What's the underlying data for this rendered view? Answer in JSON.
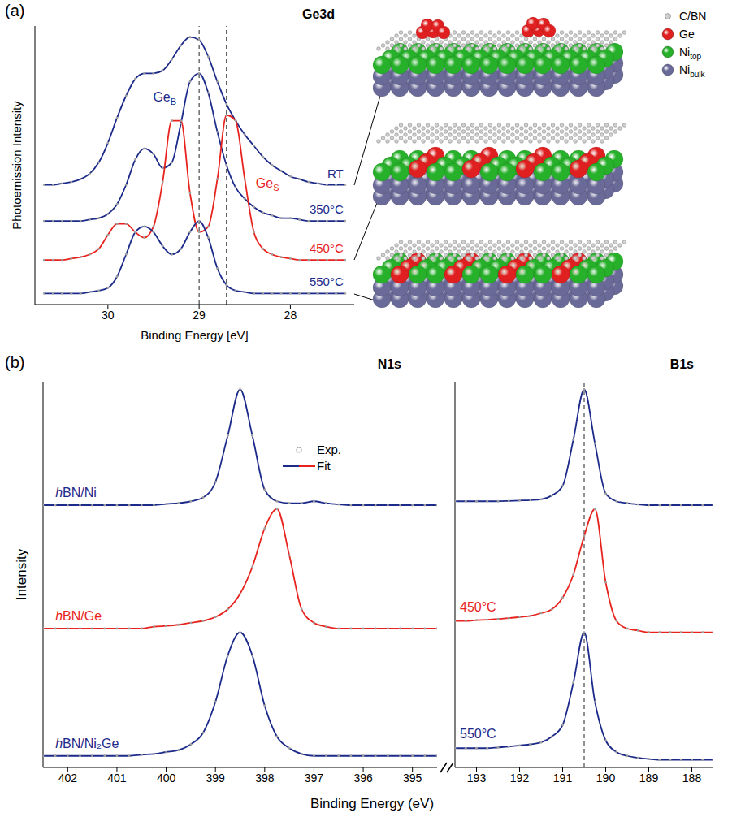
{
  "chart_data": [
    {
      "type": "line",
      "panel": "(a)",
      "title": "Ge3d",
      "x_label": "Binding Energy [eV]",
      "y_label": "Photoemission Intensity",
      "x": [
        27.4,
        27.5,
        27.6,
        27.7,
        27.8,
        27.9,
        28.0,
        28.1,
        28.2,
        28.3,
        28.4,
        28.5,
        28.6,
        28.7,
        28.8,
        28.9,
        29.0,
        29.1,
        29.2,
        29.3,
        29.4,
        29.5,
        29.6,
        29.7,
        29.8,
        29.9,
        30.0,
        30.1,
        30.2,
        30.3,
        30.4,
        30.5,
        30.6,
        30.7
      ],
      "series": [
        {
          "name": "RT",
          "color": "#1c2a8a",
          "values": [
            43,
            43,
            43,
            43.5,
            44,
            45,
            46,
            48,
            50,
            53,
            57,
            61,
            66,
            72,
            80,
            89,
            95,
            96,
            93,
            88,
            84,
            83,
            83,
            81,
            75,
            67,
            58,
            51,
            47,
            45,
            44,
            43.5,
            43,
            43
          ]
        },
        {
          "name": "350°C",
          "color": "#1c2a8a",
          "values": [
            30,
            30,
            30,
            30,
            30,
            30.5,
            31,
            31,
            32,
            33,
            35,
            38,
            42,
            50,
            62,
            76,
            83,
            80,
            65,
            51,
            49,
            54,
            56,
            52,
            43,
            36,
            32.5,
            31,
            30.5,
            30,
            30,
            30,
            30,
            30
          ]
        },
        {
          "name": "450°C",
          "color": "#e8231e",
          "values": [
            16,
            16,
            16,
            16,
            16,
            16,
            16.5,
            17,
            18,
            20,
            26,
            45,
            66,
            68,
            45,
            28,
            26,
            40,
            66,
            66,
            44,
            28,
            24,
            26,
            29,
            29,
            25,
            20,
            18,
            17,
            16.5,
            16,
            16,
            16
          ]
        },
        {
          "name": "550°C",
          "color": "#1c2a8a",
          "values": [
            4,
            4,
            4,
            4,
            4,
            4,
            4,
            4,
            4,
            4,
            4,
            4.5,
            5,
            7,
            13,
            24,
            30,
            26,
            20,
            18,
            21,
            26,
            28,
            26,
            18,
            10,
            6,
            5,
            4.5,
            4,
            4,
            4,
            4,
            4
          ]
        }
      ],
      "xlim": [
        27.3,
        30.8
      ],
      "xticks": [
        28,
        29,
        30
      ],
      "ylim": [
        0,
        100
      ],
      "yticks": [],
      "tick_labels": "x",
      "marker": "circle",
      "annotations": [
        {
          "x": 29.0,
          "text": "Ge",
          "sub": "B",
          "color": "#1c2a8a"
        },
        {
          "x": 28.7,
          "text": "Ge",
          "sub": "S",
          "color": "#e8231e"
        }
      ]
    },
    {
      "type": "line",
      "panel": "(b)",
      "title": "N1s",
      "x_label": "Binding Energy (eV)",
      "y_label": "Intensity",
      "legend": "top",
      "legend_labels": [
        "Exp.",
        "Fit"
      ],
      "x": [
        394.5,
        394.75,
        395,
        395.25,
        395.5,
        395.75,
        396,
        396.25,
        396.5,
        396.75,
        397,
        397.25,
        397.5,
        397.75,
        398,
        398.25,
        398.5,
        398.75,
        399,
        399.25,
        399.5,
        399.75,
        400,
        400.25,
        400.5,
        400.75,
        401,
        401.25,
        401.5,
        401.75,
        402,
        402.25,
        402.5
      ],
      "series": [
        {
          "name": "hBN/Ni",
          "color": "#1c2a8a",
          "values": [
            68,
            68,
            68,
            68,
            68,
            68,
            68,
            68,
            68.2,
            68.5,
            69,
            68.5,
            68.5,
            69,
            72,
            86,
            98,
            86,
            74,
            70,
            69,
            68.5,
            68.3,
            68,
            68,
            68,
            68,
            68,
            68,
            68,
            68,
            68,
            68
          ]
        },
        {
          "name": "hBN/Ge",
          "color": "#e8231e",
          "values": [
            36,
            36,
            36,
            36,
            36,
            36,
            36,
            36,
            36,
            36.5,
            37.5,
            41,
            55,
            67,
            62,
            52,
            45,
            41,
            39,
            38,
            37.5,
            37,
            36.7,
            36.5,
            36,
            36,
            36,
            36,
            36,
            36,
            36,
            36,
            36
          ]
        },
        {
          "name": "hBN/Ni₂Ge",
          "color": "#1c2a8a",
          "values": [
            3,
            3,
            3,
            3,
            3,
            3,
            3,
            3,
            3,
            3,
            3,
            3.5,
            5,
            8,
            16,
            29,
            35,
            29,
            17,
            9,
            6,
            4.5,
            4,
            3.5,
            3.3,
            3,
            3,
            3,
            3,
            3,
            3,
            3,
            3
          ]
        }
      ],
      "xlim": [
        394.5,
        402.5
      ],
      "xticks": [
        395,
        396,
        397,
        398,
        399,
        400,
        401,
        402
      ],
      "ylim": [
        0,
        100
      ],
      "yticks": [],
      "tick_labels": "x",
      "marker": "circle",
      "reference_lines": [
        398.5
      ]
    },
    {
      "type": "line",
      "title": "B1s",
      "x": [
        187.5,
        187.75,
        188,
        188.25,
        188.5,
        188.75,
        189,
        189.25,
        189.5,
        189.75,
        190,
        190.25,
        190.5,
        190.75,
        191,
        191.25,
        191.5,
        191.75,
        192,
        192.25,
        192.5,
        192.75,
        193,
        193.25,
        193.5
      ],
      "series": [
        {
          "color": "#1c2a8a",
          "values": [
            68,
            68,
            68,
            68,
            68,
            68,
            68,
            68.2,
            68.5,
            69,
            71,
            84,
            98,
            85,
            73,
            70.5,
            69.5,
            69.3,
            69.2,
            69.1,
            69,
            69,
            69,
            69,
            69
          ]
        },
        {
          "label": "450°C",
          "color": "#e8231e",
          "values": [
            35,
            35,
            35,
            35,
            35,
            35,
            35,
            35.5,
            36,
            38,
            48,
            67,
            60,
            50,
            44,
            41,
            40,
            39.3,
            39,
            38.7,
            38.5,
            38.3,
            38.2,
            38,
            38
          ]
        },
        {
          "label": "550°C",
          "color": "#1c2a8a",
          "values": [
            2,
            2,
            2,
            2,
            2,
            2,
            2.2,
            2.5,
            3,
            4,
            7,
            17,
            35,
            22,
            11,
            8,
            6.5,
            6,
            5.7,
            5.4,
            5.2,
            5,
            5,
            5,
            5
          ]
        }
      ],
      "xlim": [
        187.5,
        193.5
      ],
      "xticks": [
        188,
        189,
        190,
        191,
        192,
        193
      ],
      "ylim": [
        0,
        100
      ],
      "yticks": [],
      "tick_labels": "x",
      "marker": "circle",
      "reference_lines": [
        190.5
      ]
    }
  ],
  "schematic": {
    "legend": [
      {
        "text": "C/BN",
        "color": "#cfcfcf"
      },
      {
        "text": "Ge",
        "color": "#e02020"
      },
      {
        "text": "Ni",
        "sub": "top",
        "color": "#27b02a"
      },
      {
        "text": "Ni",
        "sub": "bulk",
        "color": "#6a6a98"
      }
    ]
  }
}
